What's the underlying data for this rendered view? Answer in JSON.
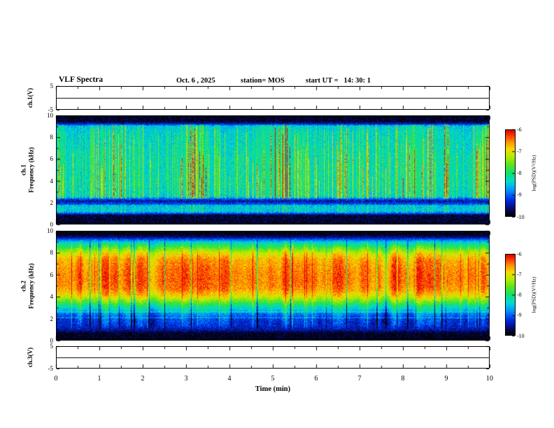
{
  "header": {
    "title": "VLF Spectra",
    "date": "Oct. 6 , 2025",
    "station": "station= MOS",
    "start_ut": "start UT =   14: 30: 1"
  },
  "x_axis": {
    "label": "Time (min)",
    "range_min": [
      0,
      10
    ],
    "ticks": [
      "0",
      "1",
      "2",
      "3",
      "4",
      "5",
      "6",
      "7",
      "8",
      "9",
      "10"
    ]
  },
  "panels": {
    "ch1_line": {
      "ylabel": "ch.1(V)",
      "yticks": [
        "5",
        "-5"
      ],
      "y_range": [
        -5,
        5
      ]
    },
    "ch1_spec": {
      "ylabel_ch": "ch.1",
      "ylabel_freq": "Frequency (kHz)",
      "yticks": [
        "10",
        "8",
        "6",
        "4",
        "2",
        "0"
      ],
      "y_range_khz": [
        0,
        10
      ]
    },
    "ch2_spec": {
      "ylabel_ch": "ch.2",
      "ylabel_freq": "Frequency (kHz)",
      "yticks": [
        "10",
        "8",
        "6",
        "4",
        "2",
        "0"
      ],
      "y_range_khz": [
        0,
        10
      ]
    },
    "ch3_line": {
      "ylabel": "ch.3(V)",
      "yticks": [
        "5",
        "-5"
      ],
      "y_range": [
        -5,
        5
      ]
    }
  },
  "colorbars": [
    {
      "label": "log(PSD)(V²/Hz)",
      "ticks": [
        "-6",
        "-7",
        "-8",
        "-9",
        "-10"
      ],
      "value_range": [
        -6,
        -10
      ]
    },
    {
      "label": "log(PSD)(V²/Hz)",
      "ticks": [
        "-6",
        "-7",
        "-8",
        "-9",
        "-10"
      ],
      "value_range": [
        -6,
        -10
      ]
    }
  ],
  "chart_data": [
    {
      "type": "line",
      "name": "ch1-voltage",
      "label": "ch.1(V)",
      "x_range_min": [
        0,
        10
      ],
      "y_range": [
        -5,
        5
      ],
      "value": 0,
      "description": "Flat voltage trace at ~0 V for channel 1"
    },
    {
      "type": "heatmap",
      "name": "ch1-spectrogram",
      "x_range_min": [
        0,
        10
      ],
      "y_range_khz": [
        0,
        10
      ],
      "color_range_log_psd": [
        -10,
        -6
      ],
      "seed": 42,
      "noise_amp": 0.35,
      "profile_points_khz_logpsd": [
        [
          0,
          -9.9
        ],
        [
          0.75,
          -9.85
        ],
        [
          0.95,
          -9.1
        ],
        [
          1.15,
          -8.55
        ],
        [
          1.65,
          -8.6
        ],
        [
          1.85,
          -9.2
        ],
        [
          2.1,
          -9.5
        ],
        [
          2.3,
          -9.05
        ],
        [
          2.55,
          -8.4
        ],
        [
          3.5,
          -8.3
        ],
        [
          6,
          -8.3
        ],
        [
          8.5,
          -8.4
        ],
        [
          9.1,
          -8.5
        ],
        [
          9.3,
          -9.4
        ],
        [
          9.55,
          -9.9
        ],
        [
          10,
          -9.95
        ]
      ],
      "streaks": {
        "density": 0.62,
        "amp": 2.0,
        "f_min_khz": 2.3,
        "f_max_khz": 9.25,
        "secondary_band_khz": [
          0.95,
          1.7
        ],
        "secondary_amp": 0.6
      },
      "description": "Green-cyan background (~-8.3 log PSD) with dense vertical sferic streaks reaching -6 (red); dark bands at 0-0.9 kHz, 1.85-2.3 kHz and above 9.3 kHz"
    },
    {
      "type": "heatmap",
      "name": "ch2-spectrogram",
      "x_range_min": [
        0,
        10
      ],
      "y_range_khz": [
        0,
        10
      ],
      "color_range_log_psd": [
        -10,
        -6
      ],
      "seed": 7,
      "noise_amp": 0.3,
      "profile_points_khz_logpsd": [
        [
          0,
          -9.95
        ],
        [
          0.6,
          -9.9
        ],
        [
          0.9,
          -9.5
        ],
        [
          1.3,
          -9.3
        ],
        [
          1.9,
          -9.2
        ],
        [
          2.4,
          -8.9
        ],
        [
          2.8,
          -8.45
        ],
        [
          3.2,
          -8.05
        ],
        [
          3.6,
          -7.5
        ],
        [
          4.1,
          -6.9
        ],
        [
          4.7,
          -6.55
        ],
        [
          5.5,
          -6.45
        ],
        [
          6.5,
          -6.5
        ],
        [
          7.4,
          -6.65
        ],
        [
          8,
          -7.05
        ],
        [
          8.5,
          -7.7
        ],
        [
          9,
          -8.35
        ],
        [
          9.25,
          -8.95
        ],
        [
          9.5,
          -9.6
        ],
        [
          9.75,
          -9.95
        ],
        [
          10,
          -10
        ]
      ],
      "column_modulation_amp": 0.4,
      "column_events": {
        "dark_prob": 0.05,
        "bright_prob": 0.035
      },
      "hlines": [
        {
          "f": 2.0,
          "amp": 0.5
        },
        {
          "f": 2.55,
          "amp": 0.35
        }
      ],
      "description": "Horizontally stratified: black below 0.9 kHz and above 9.4 kHz, dark blue 1-2.5 kHz, green 2.5-3.5 kHz, intense red-orange band 4-8 kHz with vertical intensity striping, green 8-9.3 kHz"
    },
    {
      "type": "line",
      "name": "ch3-voltage",
      "label": "ch.3(V)",
      "x_range_min": [
        0,
        10
      ],
      "y_range": [
        -5,
        5
      ],
      "value": 0,
      "description": "Flat voltage trace at ~0 V for channel 3"
    }
  ]
}
